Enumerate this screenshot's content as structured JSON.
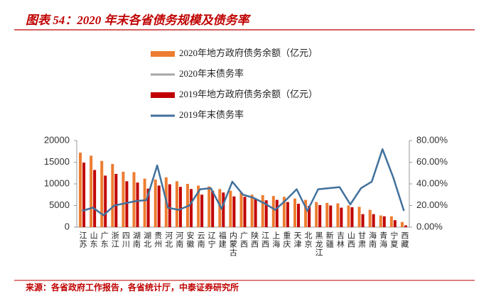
{
  "chart_data": {
    "type": "bar",
    "title": "图表 54：2020 年末各省债务规模及债务率",
    "source": "来源：各省政府工作报告，各省统计厅，中泰证券研究所",
    "categories": [
      "江苏",
      "山东",
      "广东",
      "浙江",
      "四川",
      "湖南",
      "湖北",
      "贵州",
      "河北",
      "河南",
      "安徽",
      "云南",
      "辽宁",
      "福建",
      "内蒙古",
      "广西",
      "陕西",
      "江西",
      "上海",
      "重庆",
      "天津",
      "北京",
      "黑龙江",
      "新疆",
      "吉林",
      "山西",
      "甘肃",
      "海南",
      "青海",
      "宁夏",
      "西藏"
    ],
    "series": [
      {
        "name": "2020年地方政府债务余额（亿元）",
        "color": "#ed7d31",
        "type": "bar",
        "values": [
          17200,
          16500,
          15300,
          14600,
          12800,
          12700,
          11200,
          11000,
          11500,
          10600,
          10000,
          9600,
          9400,
          8800,
          8400,
          8000,
          7500,
          7400,
          7200,
          7000,
          6600,
          6300,
          5800,
          5600,
          5500,
          5000,
          4700,
          4000,
          2700,
          2500,
          1200
        ]
      },
      {
        "name": "2020年末债务率",
        "color": "#a5a5a5",
        "type": "line",
        "axis": "y2",
        "values": [
          null,
          null,
          null,
          null,
          null,
          null,
          null,
          null,
          null,
          null,
          null,
          null,
          null,
          null,
          null,
          null,
          null,
          null,
          null,
          null,
          null,
          null,
          null,
          null,
          null,
          null,
          null,
          null,
          null,
          null,
          null
        ]
      },
      {
        "name": "2019年地方政府债务余额（亿元）",
        "color": "#c00000",
        "type": "bar",
        "values": [
          14900,
          13200,
          11900,
          12300,
          10600,
          10300,
          8900,
          9600,
          9900,
          9300,
          8800,
          7500,
          8400,
          8000,
          7100,
          7000,
          6500,
          6200,
          6300,
          5800,
          5400,
          4900,
          5100,
          5000,
          4500,
          4600,
          3000,
          3000,
          2500,
          1600,
          400
        ]
      },
      {
        "name": "2019年末债务率",
        "color": "#41719c",
        "type": "line",
        "axis": "y2",
        "values": [
          15,
          18,
          11,
          20,
          22,
          24,
          25,
          57,
          18,
          16,
          20,
          35,
          36,
          17,
          42,
          30,
          27,
          22,
          16,
          25,
          35,
          15,
          35,
          36,
          37,
          21,
          36,
          42,
          72,
          46,
          15
        ]
      }
    ],
    "ylim": [
      0,
      20000
    ],
    "yticks": [
      0,
      5000,
      10000,
      15000,
      20000
    ],
    "y2lim": [
      0,
      80
    ],
    "y2ticks": [
      {
        "value": 0,
        "label": "0.00%"
      },
      {
        "value": 20,
        "label": "20.00%"
      },
      {
        "value": 40,
        "label": "40.00%"
      },
      {
        "value": 60,
        "label": "60.00%"
      },
      {
        "value": 80,
        "label": "80.00%"
      }
    ],
    "legend": "top"
  }
}
